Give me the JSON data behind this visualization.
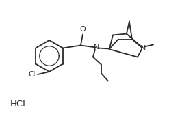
{
  "background_color": "#ffffff",
  "line_color": "#2a2a2a",
  "line_width": 1.3,
  "text_color": "#2a2a2a",
  "hcl_text": "HCl",
  "n_label": "N",
  "o_label": "O",
  "cl_label": "Cl",
  "figsize": [
    2.47,
    1.7
  ],
  "dpi": 100,
  "font_size": 7.5
}
